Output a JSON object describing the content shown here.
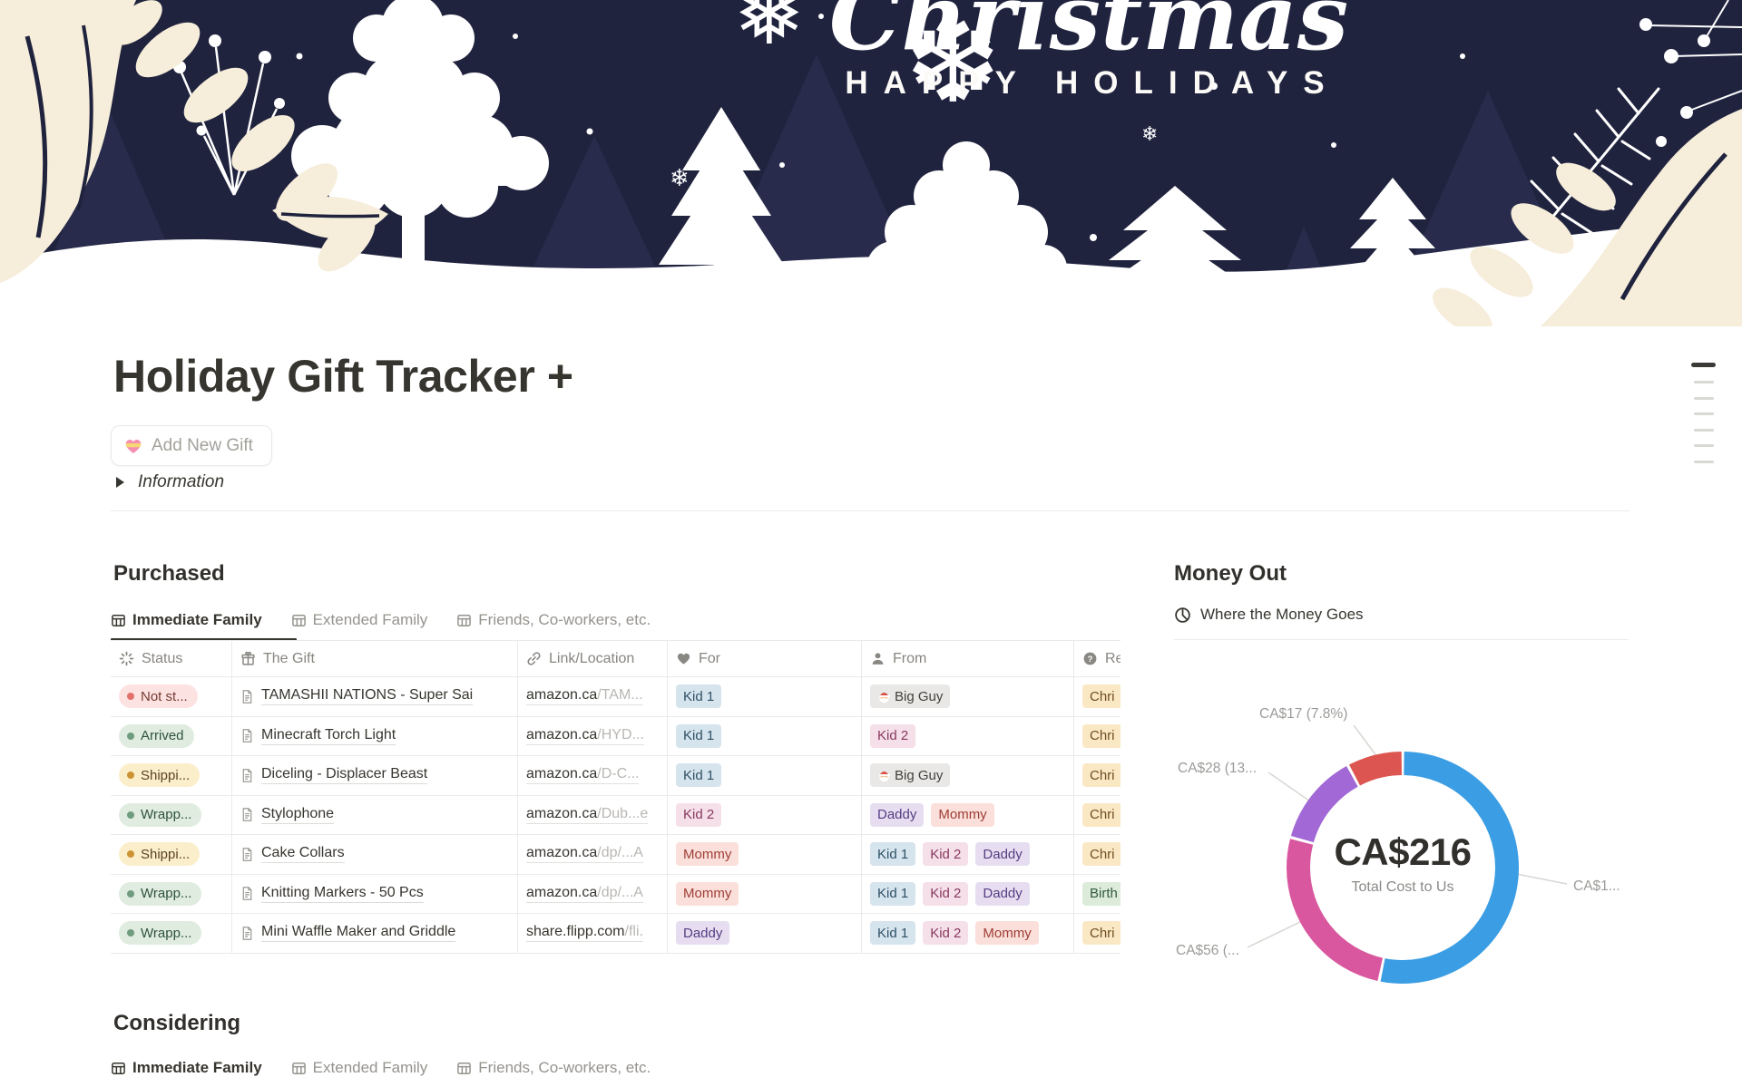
{
  "banner": {
    "script_title": "Christmas",
    "subtitle": "HAPPY HOLIDAYS"
  },
  "header": {
    "title": "Holiday Gift Tracker +",
    "add_gift_button": "Add New Gift",
    "add_gift_icon": "heart-gift-icon",
    "information_toggle": "Information"
  },
  "purchased": {
    "heading": "Purchased",
    "tabs": [
      {
        "label": "Immediate Family",
        "active": true
      },
      {
        "label": "Extended Family",
        "active": false
      },
      {
        "label": "Friends, Co-workers, etc.",
        "active": false
      }
    ],
    "columns": [
      {
        "icon": "status",
        "label": "Status"
      },
      {
        "icon": "gift",
        "label": "The Gift"
      },
      {
        "icon": "link",
        "label": "Link/Location"
      },
      {
        "icon": "heart",
        "label": "For"
      },
      {
        "icon": "person",
        "label": "From"
      },
      {
        "icon": "question",
        "label": "Re"
      }
    ],
    "rows": [
      {
        "status": {
          "label": "Not st...",
          "color": "red"
        },
        "gift": "TAMASHII NATIONS - Super Sai",
        "link": {
          "base": "amazon.ca",
          "rest": "/TAM..."
        },
        "for": [
          {
            "label": "Kid 1",
            "color": "blue"
          }
        ],
        "from": [
          {
            "label": "Big Guy",
            "color": "gray",
            "icon": "santa"
          }
        ],
        "reason": [
          {
            "label": "Chri",
            "color": "yellow"
          }
        ]
      },
      {
        "status": {
          "label": "Arrived",
          "color": "green"
        },
        "gift": "Minecraft Torch Light",
        "link": {
          "base": "amazon.ca",
          "rest": "/HYD..."
        },
        "for": [
          {
            "label": "Kid 1",
            "color": "blue"
          }
        ],
        "from": [
          {
            "label": "Kid 2",
            "color": "pink"
          }
        ],
        "reason": [
          {
            "label": "Chri",
            "color": "yellow"
          }
        ]
      },
      {
        "status": {
          "label": "Shippi...",
          "color": "yellow"
        },
        "gift": "Diceling - Displacer Beast",
        "link": {
          "base": "amazon.ca",
          "rest": "/D-C..."
        },
        "for": [
          {
            "label": "Kid 1",
            "color": "blue"
          }
        ],
        "from": [
          {
            "label": "Big Guy",
            "color": "gray",
            "icon": "santa"
          }
        ],
        "reason": [
          {
            "label": "Chri",
            "color": "yellow"
          }
        ]
      },
      {
        "status": {
          "label": "Wrapp...",
          "color": "green"
        },
        "gift": "Stylophone",
        "link": {
          "base": "amazon.ca",
          "rest": "/Dub...e"
        },
        "for": [
          {
            "label": "Kid 2",
            "color": "pink"
          }
        ],
        "from": [
          {
            "label": "Daddy",
            "color": "purple"
          },
          {
            "label": "Mommy",
            "color": "red"
          }
        ],
        "reason": [
          {
            "label": "Chri",
            "color": "yellow"
          }
        ]
      },
      {
        "status": {
          "label": "Shippi...",
          "color": "yellow"
        },
        "gift": "Cake Collars",
        "link": {
          "base": "amazon.ca",
          "rest": "/dp/...A"
        },
        "for": [
          {
            "label": "Mommy",
            "color": "red"
          }
        ],
        "from": [
          {
            "label": "Kid 1",
            "color": "blue"
          },
          {
            "label": "Kid 2",
            "color": "pink"
          },
          {
            "label": "Daddy",
            "color": "purple"
          }
        ],
        "reason": [
          {
            "label": "Chri",
            "color": "yellow"
          }
        ]
      },
      {
        "status": {
          "label": "Wrapp...",
          "color": "green"
        },
        "gift": "Knitting Markers - 50 Pcs",
        "link": {
          "base": "amazon.ca",
          "rest": "/dp/...A"
        },
        "for": [
          {
            "label": "Mommy",
            "color": "red"
          }
        ],
        "from": [
          {
            "label": "Kid 1",
            "color": "blue"
          },
          {
            "label": "Kid 2",
            "color": "pink"
          },
          {
            "label": "Daddy",
            "color": "purple"
          }
        ],
        "reason": [
          {
            "label": "Birth",
            "color": "green"
          }
        ]
      },
      {
        "status": {
          "label": "Wrapp...",
          "color": "green"
        },
        "gift": "Mini Waffle Maker and Griddle",
        "link": {
          "base": "share.flipp.com",
          "rest": "/fli."
        },
        "for": [
          {
            "label": "Daddy",
            "color": "purple"
          }
        ],
        "from": [
          {
            "label": "Kid 1",
            "color": "blue"
          },
          {
            "label": "Kid 2",
            "color": "pink"
          },
          {
            "label": "Mommy",
            "color": "red"
          }
        ],
        "reason": [
          {
            "label": "Chri",
            "color": "yellow"
          }
        ]
      }
    ]
  },
  "money_out": {
    "heading": "Money Out",
    "view_label": "Where the Money Goes",
    "chart_data": {
      "type": "donut",
      "title": "Where the Money Goes",
      "center_value": "CA$216",
      "center_caption": "Total Cost to Us",
      "total": 216,
      "slices": [
        {
          "name": "blue",
          "callout": "CA$1...",
          "value": 115,
          "pct": 53.2,
          "color": "#3B9DE3"
        },
        {
          "name": "pink",
          "callout": "CA$56 (...",
          "value": 56,
          "pct": 25.9,
          "color": "#D9579E"
        },
        {
          "name": "purple",
          "callout": "CA$28 (13...",
          "value": 28,
          "pct": 13.0,
          "color": "#A168D6"
        },
        {
          "name": "red",
          "callout": "CA$17 (7.8%)",
          "value": 17,
          "pct": 7.8,
          "color": "#DD5550"
        }
      ]
    }
  },
  "considering": {
    "heading": "Considering",
    "tabs": [
      {
        "label": "Immediate Family",
        "active": true
      },
      {
        "label": "Extended Family",
        "active": false
      },
      {
        "label": "Friends, Co-workers, etc.",
        "active": false
      }
    ]
  },
  "colors": {
    "banner_navy": "#20233E",
    "banner_cream": "#F6EDDA",
    "accent_text": "#37352F"
  }
}
